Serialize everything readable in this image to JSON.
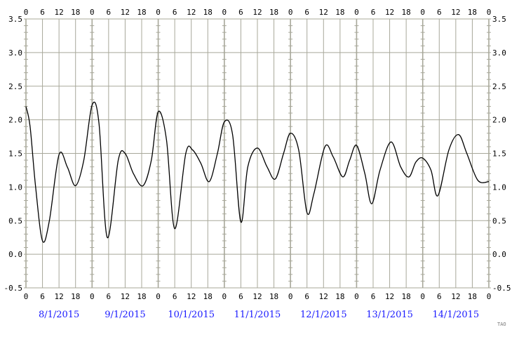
{
  "chart_data": {
    "type": "line",
    "title": "",
    "xlabel": "",
    "ylabel": "",
    "x_start": "8/1/2015 00:00",
    "x_hours_total": 168,
    "x_tick_step_hours": 6,
    "x_tick_labels": [
      "0",
      "6",
      "12",
      "18"
    ],
    "date_labels": [
      "8/1/2015",
      "9/1/2015",
      "10/1/2015",
      "11/1/2015",
      "12/1/2015",
      "13/1/2015",
      "14/1/2015"
    ],
    "ylim": [
      -0.5,
      3.5
    ],
    "y_ticks": [
      -0.5,
      0.0,
      0.5,
      1.0,
      1.5,
      2.0,
      2.5,
      3.0,
      3.5
    ],
    "y_tick_labels": [
      "-0.5",
      "0.0",
      "0.5",
      "1.0",
      "1.5",
      "2.0",
      "2.5",
      "3.0",
      "3.5"
    ],
    "grid": true,
    "colors": {
      "grid": "#a8a89a",
      "line": "#000000",
      "date_labels": "#1a1aff",
      "background": "#ffffff"
    },
    "credit": "TAO",
    "series": [
      {
        "x_hours": [
          0,
          1.5,
          3.5,
          6,
          8.5,
          12,
          15,
          18,
          21,
          24,
          26.5,
          29.5,
          33.5,
          36,
          39,
          42.5,
          45.5,
          48,
          51,
          54,
          58,
          60.5,
          63.5,
          66.5,
          69.5,
          72,
          75,
          78,
          80.5,
          84,
          87.5,
          90.5,
          93.5,
          96,
          99,
          102,
          104.5,
          108.5,
          111.5,
          115,
          117.5,
          120,
          123,
          125.5,
          128.5,
          132.5,
          136,
          139,
          141.5,
          144,
          147,
          149.5,
          153.5,
          157,
          160,
          164,
          168
        ],
        "y": [
          2.2,
          1.9,
          1.0,
          0.2,
          0.5,
          1.48,
          1.3,
          1.02,
          1.4,
          2.22,
          1.95,
          0.25,
          1.4,
          1.5,
          1.2,
          1.02,
          1.4,
          2.12,
          1.7,
          0.38,
          1.5,
          1.55,
          1.35,
          1.08,
          1.5,
          1.97,
          1.78,
          0.48,
          1.3,
          1.58,
          1.3,
          1.12,
          1.5,
          1.8,
          1.55,
          0.62,
          0.9,
          1.6,
          1.45,
          1.15,
          1.4,
          1.62,
          1.2,
          0.75,
          1.25,
          1.67,
          1.3,
          1.15,
          1.37,
          1.43,
          1.25,
          0.87,
          1.55,
          1.78,
          1.5,
          1.1,
          1.08
        ]
      }
    ]
  }
}
